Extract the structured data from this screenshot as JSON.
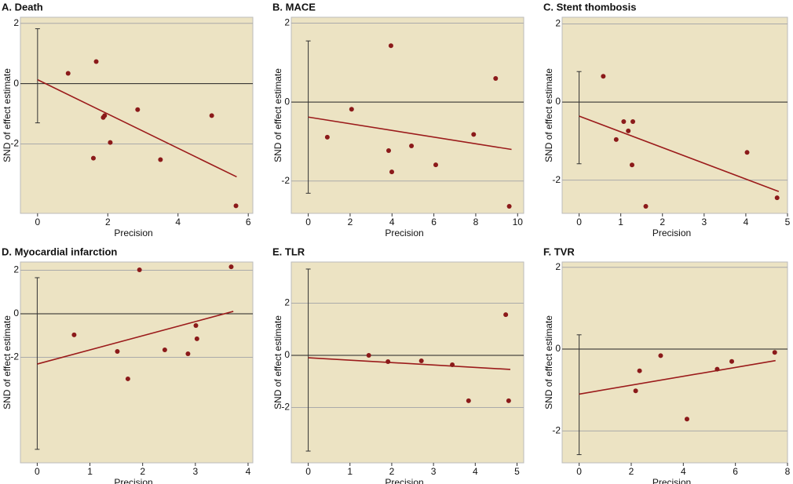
{
  "chart_data": [
    {
      "type": "scatter",
      "title": "A. Death",
      "x_label": "Precision",
      "y_label": "SND of effect estimate",
      "x": [
        0.87,
        1.67,
        1.87,
        1.91,
        2.07,
        1.59,
        2.85,
        3.5,
        4.96,
        5.65
      ],
      "values": [
        0.34,
        0.73,
        -1.12,
        -1.06,
        -1.95,
        -2.47,
        -0.86,
        -2.52,
        -1.06,
        -4.05
      ],
      "fit_line": {
        "x": [
          0,
          5.67
        ],
        "values": [
          0.13,
          -3.09
        ]
      },
      "interval": [
        -1.3,
        1.82
      ],
      "xlim": [
        -0.22,
        6.13
      ],
      "ylim": [
        -4.3,
        2.2
      ],
      "xticks": [
        0,
        2,
        4,
        6
      ],
      "yticks": [
        -2,
        0,
        2
      ],
      "grid": true,
      "color": "#8b1a1a",
      "line_color": "#9b1b1b"
    },
    {
      "type": "scatter",
      "title": "B. MACE",
      "x_label": "Precision",
      "y_label": "SND of effect estimate",
      "x": [
        0.91,
        2.07,
        3.95,
        3.84,
        3.99,
        4.93,
        6.09,
        7.9,
        8.95,
        9.6
      ],
      "values": [
        -0.89,
        -0.18,
        1.43,
        -1.23,
        -1.77,
        -1.11,
        -1.59,
        -0.82,
        0.6,
        -2.64
      ],
      "fit_line": {
        "x": [
          0,
          9.71
        ],
        "values": [
          -0.38,
          -1.2
        ]
      },
      "interval": [
        -2.31,
        1.55
      ],
      "xlim": [
        -0.36,
        10.29
      ],
      "ylim": [
        -2.82,
        2.15
      ],
      "xticks": [
        0,
        2,
        4,
        6,
        8,
        10
      ],
      "yticks": [
        -2,
        0,
        2
      ],
      "grid": true,
      "color": "#8b1a1a",
      "line_color": "#9b1b1b"
    },
    {
      "type": "scatter",
      "title": "C. Stent thombosis",
      "x_label": "Precision",
      "y_label": "SND of effect estimate",
      "x": [
        0.58,
        1.07,
        1.29,
        1.18,
        0.89,
        1.27,
        1.6,
        4.03,
        4.75
      ],
      "values": [
        0.66,
        -0.5,
        -0.5,
        -0.74,
        -0.96,
        -1.61,
        -2.67,
        -1.29,
        -2.45
      ],
      "fit_line": {
        "x": [
          0,
          4.79
        ],
        "values": [
          -0.36,
          -2.29
        ]
      },
      "interval": [
        -1.58,
        0.78
      ],
      "xlim": [
        -0.18,
        5.0
      ],
      "ylim": [
        -2.85,
        2.17
      ],
      "xticks": [
        0,
        1,
        2,
        3,
        4,
        5
      ],
      "yticks": [
        -2,
        0,
        2
      ],
      "grid": true,
      "color": "#8b1a1a",
      "line_color": "#9b1b1b"
    },
    {
      "type": "scatter",
      "title": "D. Myocardial infarction",
      "x_label": "Precision",
      "y_label": "SND of effect estimate",
      "x": [
        0.7,
        1.52,
        1.72,
        1.94,
        2.42,
        2.86,
        3.01,
        3.03,
        3.68
      ],
      "values": [
        -0.97,
        -1.73,
        -2.99,
        2.02,
        -1.66,
        -1.84,
        -0.54,
        -1.15,
        2.16
      ],
      "fit_line": {
        "x": [
          0,
          3.72
        ],
        "values": [
          -2.31,
          0.11
        ]
      },
      "interval": [
        -6.23,
        1.66
      ],
      "xlim": [
        -0.14,
        4.09
      ],
      "ylim": [
        -6.85,
        2.38
      ],
      "xticks": [
        0,
        1,
        2,
        3,
        4
      ],
      "yticks": [
        -2,
        0,
        2
      ],
      "grid": true,
      "color": "#8b1a1a",
      "line_color": "#9b1b1b"
    },
    {
      "type": "scatter",
      "title": "E. TLR",
      "x_label": "Precision",
      "y_label": "SND of effect estimate",
      "x": [
        1.45,
        1.91,
        2.71,
        3.45,
        3.84,
        4.73,
        4.8
      ],
      "values": [
        0,
        -0.24,
        -0.21,
        -0.36,
        -1.74,
        1.56,
        -1.74
      ],
      "fit_line": {
        "x": [
          0,
          4.84
        ],
        "values": [
          -0.09,
          -0.54
        ]
      },
      "interval": [
        -3.67,
        3.31
      ],
      "xlim": [
        -0.18,
        5.16
      ],
      "ylim": [
        -4.12,
        3.58
      ],
      "xticks": [
        0,
        1,
        2,
        3,
        4,
        5
      ],
      "yticks": [
        -2,
        0,
        2
      ],
      "grid": true,
      "color": "#8b1a1a",
      "line_color": "#9b1b1b"
    },
    {
      "type": "scatter",
      "title": "F. TVR",
      "x_label": "Precision",
      "y_label": "SND of effect estimate",
      "x": [
        2.17,
        2.32,
        3.13,
        4.14,
        5.3,
        5.86,
        7.51
      ],
      "values": [
        -1.02,
        -0.53,
        -0.16,
        -1.71,
        -0.49,
        -0.3,
        -0.08
      ],
      "fit_line": {
        "x": [
          0,
          7.54
        ],
        "values": [
          -1.1,
          -0.28
        ]
      },
      "interval": [
        -2.58,
        0.35
      ],
      "xlim": [
        -0.29,
        8.0
      ],
      "ylim": [
        -2.78,
        2.13
      ],
      "xticks": [
        0,
        2,
        4,
        6,
        8
      ],
      "yticks": [
        -2,
        0,
        2
      ],
      "grid": true,
      "color": "#8b1a1a",
      "line_color": "#9b1b1b"
    }
  ]
}
